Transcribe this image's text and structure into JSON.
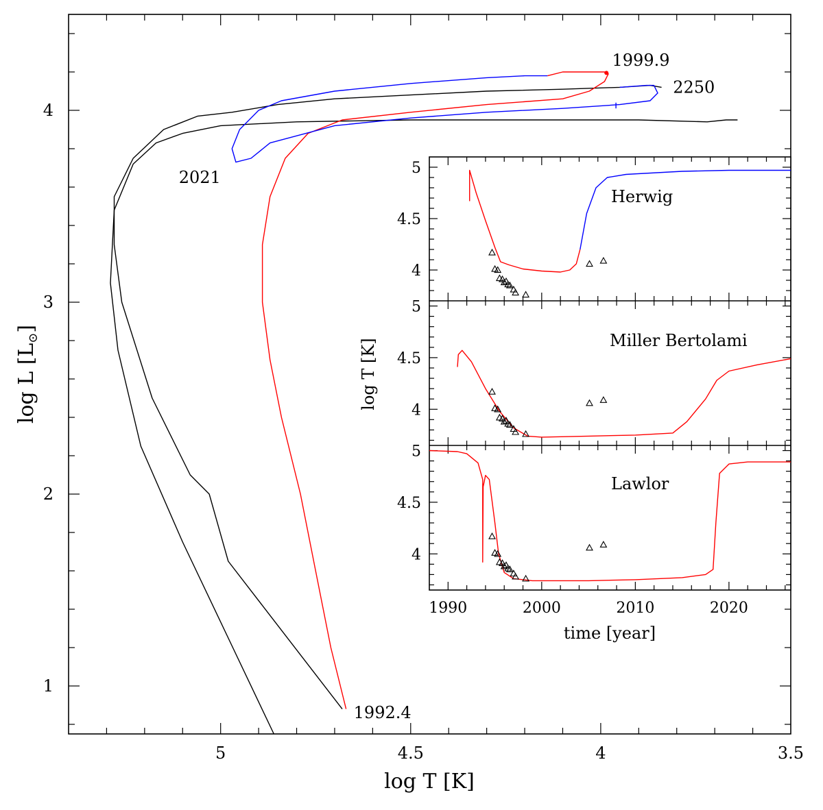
{
  "chart_data": [
    {
      "type": "line",
      "title": "",
      "xlabel": "log T [K]",
      "ylabel": "log L [L",
      "ylabel_sub": "⊙",
      "ylabel_close": "]",
      "xlim": [
        5.4,
        3.5
      ],
      "ylim": [
        0.75,
        4.5
      ],
      "x_reversed": true,
      "x_ticks": [
        5,
        4.5,
        4,
        3.5
      ],
      "x_tick_labels": [
        "5",
        "4.5",
        "4",
        "3.5"
      ],
      "y_ticks": [
        1,
        2,
        3,
        4
      ],
      "y_tick_labels": [
        "1",
        "2",
        "3",
        "4"
      ],
      "grid": false,
      "colors": {
        "black": "#000000",
        "red": "#ff0000",
        "blue": "#0000ff"
      },
      "series": [
        {
          "color": "#000000",
          "points": [
            [
              4.86,
              0.75
            ],
            [
              4.98,
              1.25
            ],
            [
              5.1,
              1.75
            ],
            [
              5.21,
              2.25
            ],
            [
              5.27,
              2.75
            ],
            [
              5.29,
              3.1
            ],
            [
              5.28,
              3.48
            ],
            [
              5.23,
              3.72
            ],
            [
              5.17,
              3.83
            ],
            [
              5.1,
              3.88
            ],
            [
              5.0,
              3.92
            ],
            [
              4.8,
              3.94
            ],
            [
              4.5,
              3.95
            ],
            [
              4.2,
              3.95
            ],
            [
              3.9,
              3.95
            ],
            [
              3.72,
              3.94
            ],
            [
              3.67,
              3.95
            ],
            [
              3.64,
              3.95
            ]
          ]
        },
        {
          "color": "#000000",
          "points": [
            [
              4.68,
              0.88
            ],
            [
              4.98,
              1.65
            ],
            [
              5.03,
              2.0
            ],
            [
              5.08,
              2.1
            ],
            [
              5.18,
              2.5
            ],
            [
              5.26,
              3.0
            ],
            [
              5.28,
              3.3
            ],
            [
              5.28,
              3.55
            ],
            [
              5.23,
              3.75
            ],
            [
              5.15,
              3.9
            ],
            [
              5.06,
              3.97
            ],
            [
              4.97,
              3.99
            ],
            [
              4.85,
              4.03
            ],
            [
              4.7,
              4.06
            ],
            [
              4.5,
              4.08
            ],
            [
              4.3,
              4.1
            ],
            [
              4.1,
              4.11
            ],
            [
              3.95,
              4.12
            ],
            [
              3.87,
              4.13
            ],
            [
              3.84,
              4.12
            ]
          ]
        },
        {
          "color": "#ff0000",
          "points": [
            [
              4.67,
              0.88
            ],
            [
              4.71,
              1.2
            ],
            [
              4.75,
              1.6
            ],
            [
              4.79,
              2.0
            ],
            [
              4.84,
              2.4
            ],
            [
              4.87,
              2.7
            ],
            [
              4.89,
              3.0
            ],
            [
              4.89,
              3.3
            ],
            [
              4.87,
              3.55
            ],
            [
              4.83,
              3.75
            ],
            [
              4.77,
              3.88
            ],
            [
              4.68,
              3.95
            ],
            [
              4.5,
              3.99
            ],
            [
              4.3,
              4.03
            ],
            [
              4.1,
              4.06
            ],
            [
              4.03,
              4.1
            ],
            [
              3.99,
              4.15
            ],
            [
              3.98,
              4.19
            ],
            [
              3.99,
              4.2
            ],
            [
              4.05,
              4.2
            ],
            [
              4.1,
              4.2
            ],
            [
              4.14,
              4.18
            ]
          ]
        },
        {
          "color": "#0000ff",
          "points": [
            [
              4.14,
              4.18
            ],
            [
              4.2,
              4.18
            ],
            [
              4.3,
              4.17
            ],
            [
              4.5,
              4.14
            ],
            [
              4.7,
              4.1
            ],
            [
              4.84,
              4.05
            ],
            [
              4.9,
              4.0
            ],
            [
              4.95,
              3.9
            ],
            [
              4.97,
              3.8
            ],
            [
              4.96,
              3.73
            ],
            [
              4.92,
              3.75
            ],
            [
              4.87,
              3.83
            ],
            [
              4.7,
              3.92
            ],
            [
              4.5,
              3.96
            ],
            [
              4.3,
              3.99
            ],
            [
              4.1,
              4.01
            ],
            [
              3.95,
              4.03
            ],
            [
              3.87,
              4.05
            ],
            [
              3.85,
              4.09
            ],
            [
              3.86,
              4.13
            ],
            [
              3.88,
              4.13
            ],
            [
              3.95,
              4.12
            ]
          ]
        },
        {
          "color": "#0000ff",
          "points": [
            [
              3.96,
              4.04
            ],
            [
              3.96,
              4.01
            ]
          ]
        }
      ],
      "annotations": [
        {
          "text": "1999.9",
          "x": 3.97,
          "y": 4.26
        },
        {
          "text": "2250",
          "x": 3.81,
          "y": 4.12
        },
        {
          "text": "2021",
          "x": 5.11,
          "y": 3.65
        },
        {
          "text": "1992.4",
          "x": 4.65,
          "y": 0.86
        }
      ]
    },
    {
      "type": "line",
      "title": "",
      "xlabel": "time [year]",
      "ylabel": "log T [K]",
      "xlim": [
        1988,
        2026.6
      ],
      "x_ticks": [
        1990,
        2000,
        2010,
        2020
      ],
      "x_tick_labels": [
        "1990",
        "2000",
        "2010",
        "2020"
      ],
      "y_ticks": [
        4,
        4.5,
        5
      ],
      "y_tick_labels": [
        "4",
        "4.5",
        "5"
      ],
      "grid": false,
      "observations": [
        [
          1994.7,
          4.17
        ],
        [
          1995.0,
          4.01
        ],
        [
          1995.3,
          4.0
        ],
        [
          1995.5,
          3.92
        ],
        [
          1995.8,
          3.91
        ],
        [
          1996.0,
          3.88
        ],
        [
          1996.2,
          3.89
        ],
        [
          1996.4,
          3.86
        ],
        [
          1996.6,
          3.85
        ],
        [
          1997.0,
          3.81
        ],
        [
          1997.2,
          3.78
        ],
        [
          1998.3,
          3.76
        ],
        [
          2005.1,
          4.06
        ],
        [
          2006.6,
          4.09
        ]
      ],
      "panels": [
        {
          "name": "Herwig",
          "ylim": [
            3.7,
            5.1
          ],
          "series": [
            {
              "color": "#ff0000",
              "points": [
                [
                  1992.3,
                  4.67
                ],
                [
                  1992.3,
                  4.97
                ],
                [
                  1993.0,
                  4.75
                ],
                [
                  1994.0,
                  4.48
                ],
                [
                  1995.0,
                  4.22
                ],
                [
                  1995.6,
                  4.08
                ],
                [
                  1996.5,
                  4.05
                ],
                [
                  1998.0,
                  4.01
                ],
                [
                  2000.0,
                  3.99
                ],
                [
                  2002.0,
                  3.98
                ],
                [
                  2003.0,
                  4.0
                ],
                [
                  2003.7,
                  4.06
                ],
                [
                  2004.1,
                  4.2
                ]
              ]
            },
            {
              "color": "#0000ff",
              "points": [
                [
                  2004.1,
                  4.2
                ],
                [
                  2004.8,
                  4.55
                ],
                [
                  2005.8,
                  4.8
                ],
                [
                  2007.0,
                  4.9
                ],
                [
                  2009.0,
                  4.93
                ],
                [
                  2015.0,
                  4.96
                ],
                [
                  2020.0,
                  4.97
                ],
                [
                  2026.6,
                  4.97
                ]
              ]
            }
          ]
        },
        {
          "name": "Miller Bertolami",
          "ylim": [
            3.65,
            5.05
          ],
          "series": [
            {
              "color": "#ff0000",
              "points": [
                [
                  1991.0,
                  4.41
                ],
                [
                  1991.1,
                  4.53
                ],
                [
                  1991.5,
                  4.57
                ],
                [
                  1992.5,
                  4.46
                ],
                [
                  1994.0,
                  4.2
                ],
                [
                  1995.5,
                  3.98
                ],
                [
                  1997.0,
                  3.82
                ],
                [
                  1998.5,
                  3.74
                ],
                [
                  2000.0,
                  3.73
                ],
                [
                  2005.0,
                  3.74
                ],
                [
                  2010.0,
                  3.75
                ],
                [
                  2014.0,
                  3.77
                ],
                [
                  2015.5,
                  3.88
                ],
                [
                  2017.5,
                  4.1
                ],
                [
                  2018.7,
                  4.28
                ],
                [
                  2020.0,
                  4.37
                ],
                [
                  2023.0,
                  4.43
                ],
                [
                  2026.6,
                  4.49
                ]
              ]
            }
          ]
        },
        {
          "name": "Lawlor",
          "ylim": [
            3.65,
            5.05
          ],
          "series": [
            {
              "color": "#ff0000",
              "points": [
                [
                  1988.0,
                  5.0
                ],
                [
                  1991.0,
                  4.99
                ],
                [
                  1992.0,
                  4.97
                ],
                [
                  1993.2,
                  4.88
                ],
                [
                  1993.7,
                  4.72
                ],
                [
                  1993.7,
                  3.92
                ],
                [
                  1993.75,
                  4.65
                ],
                [
                  1994.0,
                  4.76
                ],
                [
                  1994.4,
                  4.72
                ],
                [
                  1995.0,
                  4.3
                ],
                [
                  1995.4,
                  4.0
                ],
                [
                  1996.0,
                  3.82
                ],
                [
                  1997.0,
                  3.76
                ],
                [
                  1999.0,
                  3.74
                ],
                [
                  2005.0,
                  3.74
                ],
                [
                  2010.0,
                  3.75
                ],
                [
                  2015.0,
                  3.77
                ],
                [
                  2017.5,
                  3.8
                ],
                [
                  2018.3,
                  3.85
                ],
                [
                  2018.6,
                  4.3
                ],
                [
                  2019.0,
                  4.78
                ],
                [
                  2020.0,
                  4.87
                ],
                [
                  2022.0,
                  4.89
                ],
                [
                  2026.6,
                  4.89
                ]
              ]
            }
          ]
        }
      ]
    }
  ]
}
